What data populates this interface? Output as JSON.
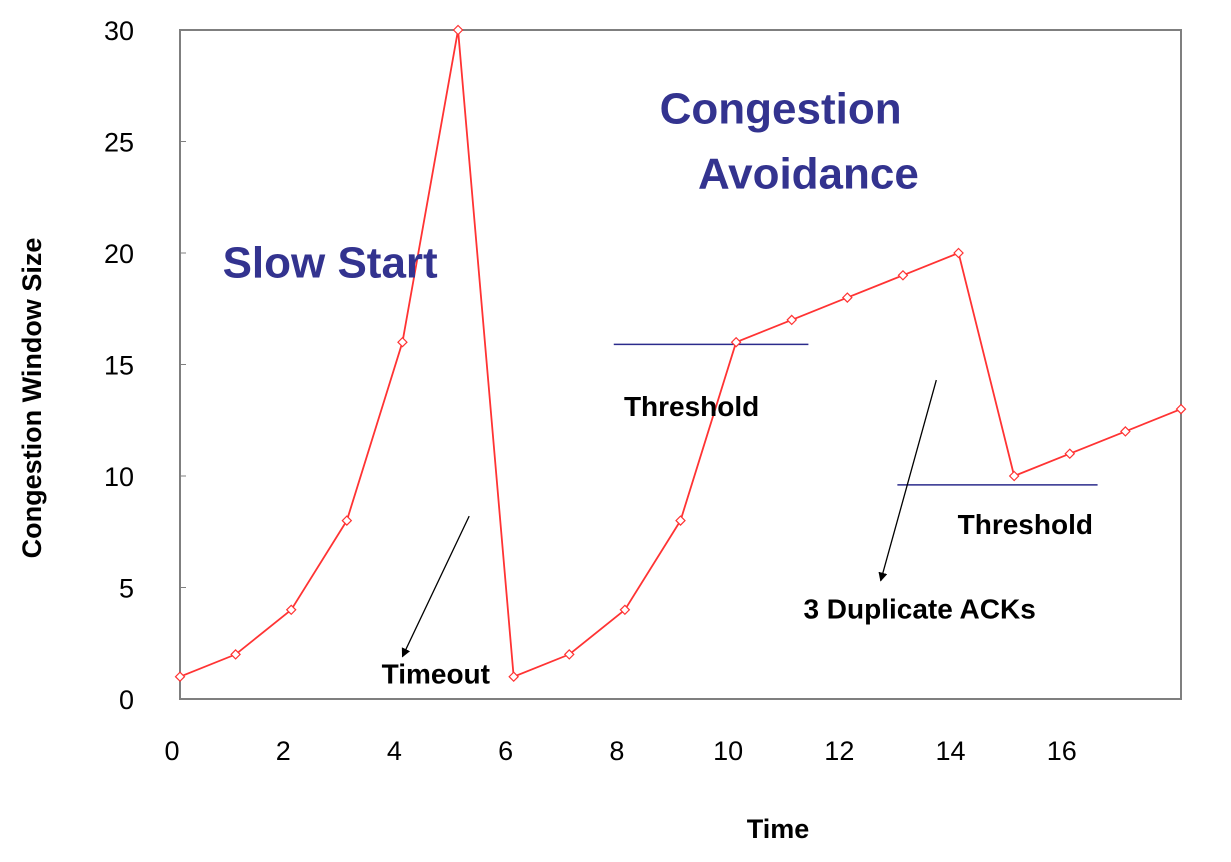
{
  "chart_data": {
    "type": "line",
    "title": "",
    "xlabel": "Time",
    "ylabel": "Congestion Window Size",
    "xlim": [
      0,
      18
    ],
    "ylim": [
      0,
      30
    ],
    "x_ticks": [
      0,
      2,
      4,
      6,
      8,
      10,
      12,
      14,
      16
    ],
    "y_ticks": [
      0,
      5,
      10,
      15,
      20,
      25,
      30
    ],
    "grid": false,
    "legend": "none",
    "series": [
      {
        "x": [
          0,
          1,
          2,
          3,
          4,
          5,
          6,
          7,
          8,
          9,
          10,
          11,
          12,
          13,
          14,
          15,
          16,
          17,
          18
        ],
        "values": [
          1,
          2,
          4,
          8,
          16,
          30,
          1,
          2,
          4,
          8,
          16,
          17,
          18,
          19,
          20,
          10,
          11,
          12,
          13
        ],
        "color": "#ff3333"
      }
    ],
    "threshold_lines": [
      {
        "y": 15.9,
        "x_start": 7.8,
        "x_end": 11.3
      },
      {
        "y": 9.6,
        "x_start": 12.9,
        "x_end": 16.5
      }
    ],
    "arrows": [
      {
        "from": [
          5.2,
          8.2
        ],
        "to": [
          4.0,
          1.9
        ]
      },
      {
        "from": [
          13.6,
          14.3
        ],
        "to": [
          12.6,
          5.3
        ]
      }
    ],
    "annotations": [
      {
        "id": "slow-start",
        "text": "Slow Start",
        "x": 2.7,
        "y": 18.9,
        "style": "phase"
      },
      {
        "id": "congestion",
        "text": "Congestion",
        "x": 10.8,
        "y": 25.8,
        "style": "phase"
      },
      {
        "id": "avoidance",
        "text": "Avoidance",
        "x": 11.3,
        "y": 22.9,
        "style": "phase"
      },
      {
        "id": "threshold-1",
        "text": "Threshold",
        "x": 9.2,
        "y": 12.7,
        "style": "note"
      },
      {
        "id": "threshold-2",
        "text": "Threshold",
        "x": 15.2,
        "y": 7.4,
        "style": "note"
      },
      {
        "id": "timeout",
        "text": "Timeout",
        "x": 4.6,
        "y": 0.7,
        "style": "note"
      },
      {
        "id": "dup-acks",
        "text": "3 Duplicate ACKs",
        "x": 13.3,
        "y": 3.6,
        "style": "note"
      }
    ],
    "colors": {
      "line": "#ff3333",
      "marker": "#ff3333",
      "threshold": "#2b2b8c",
      "phase_text": "#33338f",
      "arrow": "#000000",
      "frame": "#7f7f7f"
    }
  }
}
